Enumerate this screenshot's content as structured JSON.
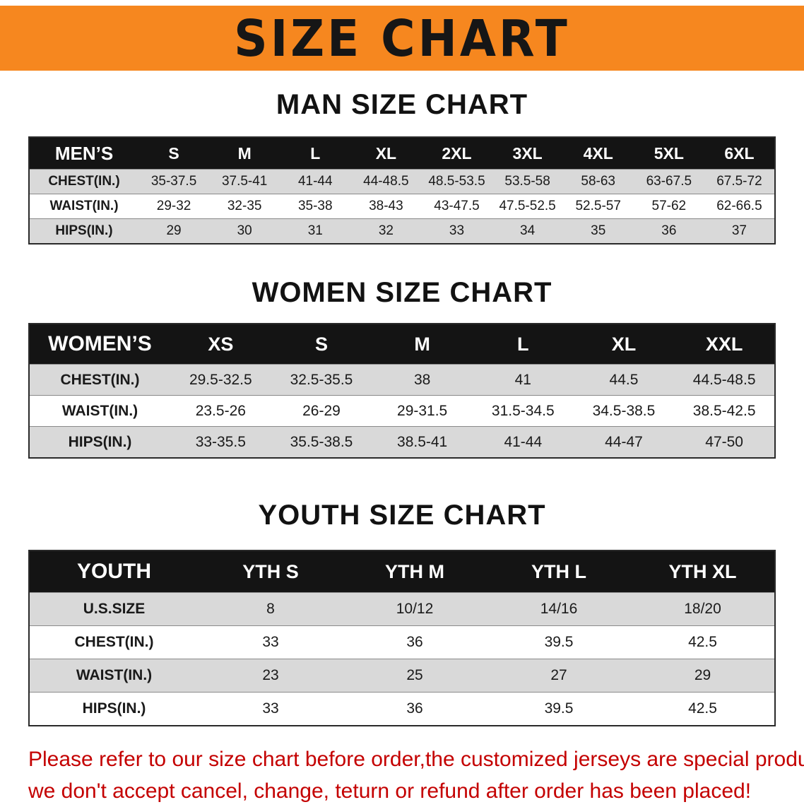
{
  "colors": {
    "banner_bg": "#F6871F",
    "banner_text": "#161616",
    "header_row_bg": "#141414",
    "header_row_text": "#FFFFFF",
    "stripe_gray": "#D9D9D9",
    "footer_red": "#C40000"
  },
  "banner": {
    "title": "SIZE CHART"
  },
  "men_chart": {
    "heading": "MAN SIZE CHART",
    "table": {
      "header": [
        "MEN’S",
        "S",
        "M",
        "L",
        "XL",
        "2XL",
        "3XL",
        "4XL",
        "5XL",
        "6XL"
      ],
      "rows": [
        [
          "CHEST(IN.)",
          "35-37.5",
          "37.5-41",
          "41-44",
          "44-48.5",
          "48.5-53.5",
          "53.5-58",
          "58-63",
          "63-67.5",
          "67.5-72"
        ],
        [
          "WAIST(IN.)",
          "29-32",
          "32-35",
          "35-38",
          "38-43",
          "43-47.5",
          "47.5-52.5",
          "52.5-57",
          "57-62",
          "62-66.5"
        ],
        [
          "HIPS(IN.)",
          "29",
          "30",
          "31",
          "32",
          "33",
          "34",
          "35",
          "36",
          "37"
        ]
      ]
    }
  },
  "women_chart": {
    "heading": "WOMEN SIZE CHART",
    "table": {
      "header": [
        "WOMEN’S",
        "XS",
        "S",
        "M",
        "L",
        "XL",
        "XXL"
      ],
      "rows": [
        [
          "CHEST(IN.)",
          "29.5-32.5",
          "32.5-35.5",
          "38",
          "41",
          "44.5",
          "44.5-48.5"
        ],
        [
          "WAIST(IN.)",
          "23.5-26",
          "26-29",
          "29-31.5",
          "31.5-34.5",
          "34.5-38.5",
          "38.5-42.5"
        ],
        [
          "HIPS(IN.)",
          "33-35.5",
          "35.5-38.5",
          "38.5-41",
          "41-44",
          "44-47",
          "47-50"
        ]
      ]
    }
  },
  "youth_chart": {
    "heading": "YOUTH SIZE CHART",
    "table": {
      "header": [
        "YOUTH",
        "YTH S",
        "YTH M",
        "YTH L",
        "YTH XL"
      ],
      "rows": [
        [
          "U.S.SIZE",
          "8",
          "10/12",
          "14/16",
          "18/20"
        ],
        [
          "CHEST(IN.)",
          "33",
          "36",
          "39.5",
          "42.5"
        ],
        [
          "WAIST(IN.)",
          "23",
          "25",
          "27",
          "29"
        ],
        [
          "HIPS(IN.)",
          "33",
          "36",
          "39.5",
          "42.5"
        ]
      ]
    }
  },
  "footer": {
    "line1": "Please refer to our size chart before order,the customized jerseys are special products,",
    "line2": "we don't accept cancel, change, teturn or refund after order has been placed!"
  }
}
